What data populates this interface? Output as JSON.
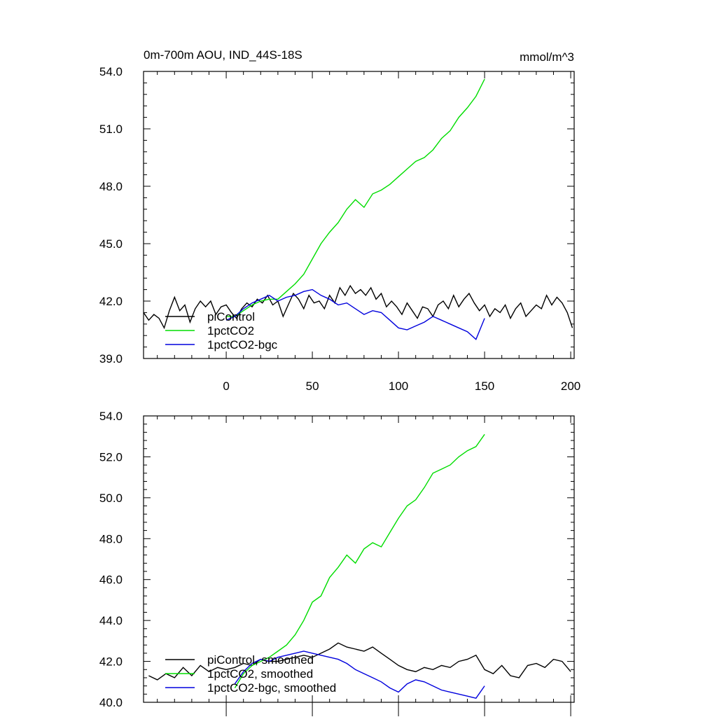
{
  "figure": {
    "title": "0m-700m AOU, IND_44S-18S",
    "units": "mmol/m^3"
  },
  "chart_data": [
    {
      "type": "line",
      "title": "0m-700m AOU, IND_44S-18S",
      "units": "mmol/m^3",
      "xlim": [
        -48,
        202
      ],
      "ylim": [
        39.0,
        54.0
      ],
      "x_ticks": [
        0,
        50,
        100,
        150,
        200
      ],
      "x_tick_labels": [
        "0",
        "50",
        "100",
        "150",
        "200"
      ],
      "y_ticks": [
        39.0,
        42.0,
        45.0,
        48.0,
        51.0,
        54.0
      ],
      "y_tick_labels": [
        "39.0",
        "42.0",
        "45.0",
        "48.0",
        "51.0",
        "54.0"
      ],
      "grid": false,
      "legend_position": "bottom-left",
      "series": [
        {
          "name": "piControl",
          "color": "#000000",
          "x": [
            -48,
            -45,
            -42,
            -39,
            -36,
            -33,
            -30,
            -27,
            -24,
            -21,
            -18,
            -15,
            -12,
            -9,
            -6,
            -3,
            0,
            3,
            6,
            9,
            12,
            15,
            18,
            21,
            24,
            27,
            30,
            33,
            36,
            39,
            42,
            45,
            48,
            51,
            54,
            57,
            60,
            63,
            66,
            69,
            72,
            75,
            78,
            81,
            84,
            87,
            90,
            93,
            96,
            99,
            102,
            105,
            108,
            111,
            114,
            117,
            120,
            123,
            126,
            129,
            132,
            135,
            138,
            141,
            144,
            147,
            150,
            153,
            156,
            159,
            162,
            165,
            168,
            171,
            174,
            177,
            180,
            183,
            186,
            189,
            192,
            195,
            198,
            201
          ],
          "values": [
            41.4,
            41.0,
            41.3,
            41.1,
            40.6,
            41.5,
            42.2,
            41.5,
            41.8,
            40.9,
            41.6,
            42.0,
            41.7,
            42.0,
            41.3,
            41.7,
            41.8,
            41.4,
            41.1,
            41.6,
            41.9,
            41.7,
            42.1,
            41.9,
            42.3,
            41.8,
            42.0,
            41.2,
            41.8,
            42.4,
            42.1,
            41.6,
            42.3,
            41.9,
            42.0,
            41.6,
            42.3,
            41.9,
            42.7,
            42.3,
            42.8,
            42.4,
            42.6,
            42.3,
            42.7,
            42.1,
            42.4,
            41.7,
            42.0,
            41.7,
            41.3,
            41.9,
            41.5,
            41.1,
            41.7,
            41.6,
            41.2,
            41.8,
            42.0,
            41.6,
            42.3,
            41.7,
            42.1,
            42.4,
            41.9,
            41.5,
            41.8,
            41.2,
            41.6,
            41.4,
            41.8,
            41.1,
            41.6,
            41.9,
            41.2,
            41.5,
            41.8,
            41.6,
            42.3,
            41.8,
            42.2,
            41.9,
            41.4,
            40.6
          ]
        },
        {
          "name": "1pctCO2",
          "color": "#00dd00",
          "x": [
            0,
            5,
            10,
            15,
            20,
            25,
            30,
            35,
            40,
            45,
            50,
            55,
            60,
            65,
            70,
            75,
            80,
            85,
            90,
            95,
            100,
            105,
            110,
            115,
            120,
            125,
            130,
            135,
            140,
            145,
            150
          ],
          "values": [
            41.2,
            41.2,
            41.5,
            41.8,
            42.0,
            42.1,
            42.1,
            42.5,
            42.9,
            43.4,
            44.2,
            45.0,
            45.6,
            46.1,
            46.8,
            47.3,
            46.9,
            47.6,
            47.8,
            48.1,
            48.5,
            48.9,
            49.3,
            49.5,
            49.9,
            50.5,
            50.9,
            51.6,
            52.1,
            52.7,
            53.6
          ]
        },
        {
          "name": "1pctCO2-bgc",
          "color": "#0000dd",
          "x": [
            0,
            5,
            10,
            15,
            20,
            25,
            30,
            35,
            40,
            45,
            50,
            55,
            60,
            65,
            70,
            75,
            80,
            85,
            90,
            95,
            100,
            105,
            110,
            115,
            120,
            125,
            130,
            135,
            140,
            145,
            150
          ],
          "values": [
            41.0,
            41.2,
            41.6,
            41.9,
            42.1,
            42.3,
            42.0,
            42.2,
            42.3,
            42.5,
            42.6,
            42.3,
            42.1,
            41.8,
            41.9,
            41.6,
            41.3,
            41.5,
            41.4,
            41.0,
            40.6,
            40.5,
            40.7,
            40.9,
            41.2,
            41.0,
            40.8,
            40.6,
            40.4,
            40.0,
            41.1
          ]
        }
      ]
    },
    {
      "type": "line",
      "xlim": [
        -48,
        202
      ],
      "ylim": [
        40.0,
        54.0
      ],
      "x_ticks": [
        0,
        50,
        100,
        150,
        200
      ],
      "y_ticks": [
        40.0,
        42.0,
        44.0,
        46.0,
        48.0,
        50.0,
        52.0,
        54.0
      ],
      "y_tick_labels": [
        "40.0",
        "42.0",
        "44.0",
        "46.0",
        "48.0",
        "50.0",
        "52.0",
        "54.0"
      ],
      "grid": false,
      "legend_position": "bottom-left",
      "series": [
        {
          "name": "piControl, smoothed",
          "color": "#000000",
          "x": [
            -45,
            -40,
            -35,
            -30,
            -25,
            -20,
            -15,
            -10,
            -5,
            0,
            5,
            10,
            15,
            20,
            25,
            30,
            35,
            40,
            45,
            50,
            55,
            60,
            65,
            70,
            75,
            80,
            85,
            90,
            95,
            100,
            105,
            110,
            115,
            120,
            125,
            130,
            135,
            140,
            145,
            150,
            155,
            160,
            165,
            170,
            175,
            180,
            185,
            190,
            195,
            200
          ],
          "values": [
            41.3,
            41.1,
            41.4,
            41.2,
            41.7,
            41.3,
            41.8,
            41.5,
            41.7,
            41.6,
            41.7,
            41.9,
            41.8,
            42.1,
            42.0,
            42.0,
            42.1,
            42.2,
            42.3,
            42.2,
            42.4,
            42.6,
            42.9,
            42.7,
            42.6,
            42.5,
            42.7,
            42.4,
            42.1,
            41.8,
            41.6,
            41.5,
            41.7,
            41.6,
            41.8,
            41.7,
            42.0,
            42.1,
            42.3,
            41.6,
            41.4,
            41.8,
            41.3,
            41.2,
            41.8,
            41.9,
            41.7,
            42.1,
            42.0,
            41.5
          ]
        },
        {
          "name": "1pctCO2, smoothed",
          "color": "#00dd00",
          "x": [
            5,
            10,
            15,
            20,
            25,
            30,
            35,
            40,
            45,
            50,
            55,
            60,
            65,
            70,
            75,
            80,
            85,
            90,
            95,
            100,
            105,
            110,
            115,
            120,
            125,
            130,
            135,
            140,
            145,
            150
          ],
          "values": [
            40.7,
            41.4,
            41.8,
            42.0,
            42.2,
            42.5,
            42.8,
            43.3,
            44.0,
            44.9,
            45.2,
            46.1,
            46.6,
            47.2,
            46.8,
            47.5,
            47.8,
            47.6,
            48.3,
            49.0,
            49.6,
            49.9,
            50.5,
            51.2,
            51.4,
            51.6,
            52.0,
            52.3,
            52.5,
            53.1
          ]
        },
        {
          "name": "1pctCO2-bgc, smoothed",
          "color": "#0000dd",
          "x": [
            5,
            10,
            15,
            20,
            25,
            30,
            35,
            40,
            45,
            50,
            55,
            60,
            65,
            70,
            75,
            80,
            85,
            90,
            95,
            100,
            105,
            110,
            115,
            120,
            125,
            130,
            135,
            140,
            145,
            150
          ],
          "values": [
            40.9,
            41.5,
            41.9,
            42.1,
            42.0,
            42.2,
            42.3,
            42.4,
            42.5,
            42.4,
            42.3,
            42.2,
            42.1,
            41.9,
            41.6,
            41.4,
            41.2,
            41.0,
            40.7,
            40.5,
            40.9,
            41.1,
            41.0,
            40.8,
            40.6,
            40.5,
            40.4,
            40.3,
            40.2,
            40.8
          ]
        }
      ]
    }
  ]
}
